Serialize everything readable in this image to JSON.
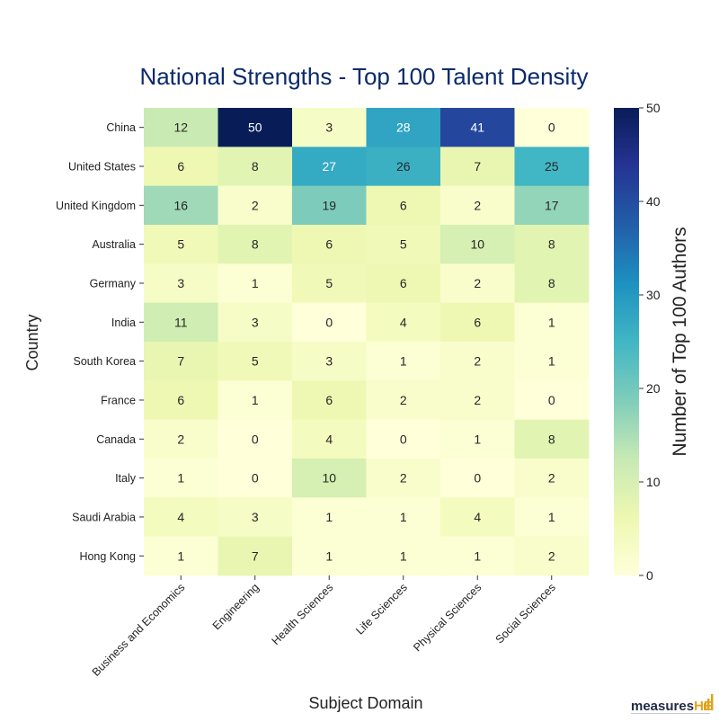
{
  "chart_data": {
    "type": "heatmap",
    "title": "National Strengths - Top 100 Talent Density",
    "xlabel": "Subject Domain",
    "ylabel": "Country",
    "colorbar_label": "Number of Top 100 Authors",
    "colorbar_range": [
      0,
      50
    ],
    "colorbar_ticks": [
      0,
      10,
      20,
      30,
      40,
      50
    ],
    "colormap": "YlGnBu",
    "x_categories": [
      "Business and Economics",
      "Engineering",
      "Health Sciences",
      "Life Sciences",
      "Physical Sciences",
      "Social Sciences"
    ],
    "y_categories": [
      "China",
      "United States",
      "United Kingdom",
      "Australia",
      "Germany",
      "India",
      "South Korea",
      "France",
      "Canada",
      "Italy",
      "Saudi Arabia",
      "Hong Kong"
    ],
    "values": [
      [
        12,
        50,
        3,
        28,
        41,
        0
      ],
      [
        6,
        8,
        27,
        26,
        7,
        25
      ],
      [
        16,
        2,
        19,
        6,
        2,
        17
      ],
      [
        5,
        8,
        6,
        5,
        10,
        8
      ],
      [
        3,
        1,
        5,
        6,
        2,
        8
      ],
      [
        11,
        3,
        0,
        4,
        6,
        1
      ],
      [
        7,
        5,
        3,
        1,
        2,
        1
      ],
      [
        6,
        1,
        6,
        2,
        2,
        0
      ],
      [
        2,
        0,
        4,
        0,
        1,
        8
      ],
      [
        1,
        0,
        10,
        2,
        0,
        2
      ],
      [
        4,
        3,
        1,
        1,
        4,
        1
      ],
      [
        1,
        7,
        1,
        1,
        1,
        2
      ]
    ],
    "title_color": "#0b2a6b"
  },
  "logo": {
    "text_main": "measures",
    "text_accent": "HE",
    "main_color": "#1f2a44",
    "accent_color": "#e0a21a"
  }
}
